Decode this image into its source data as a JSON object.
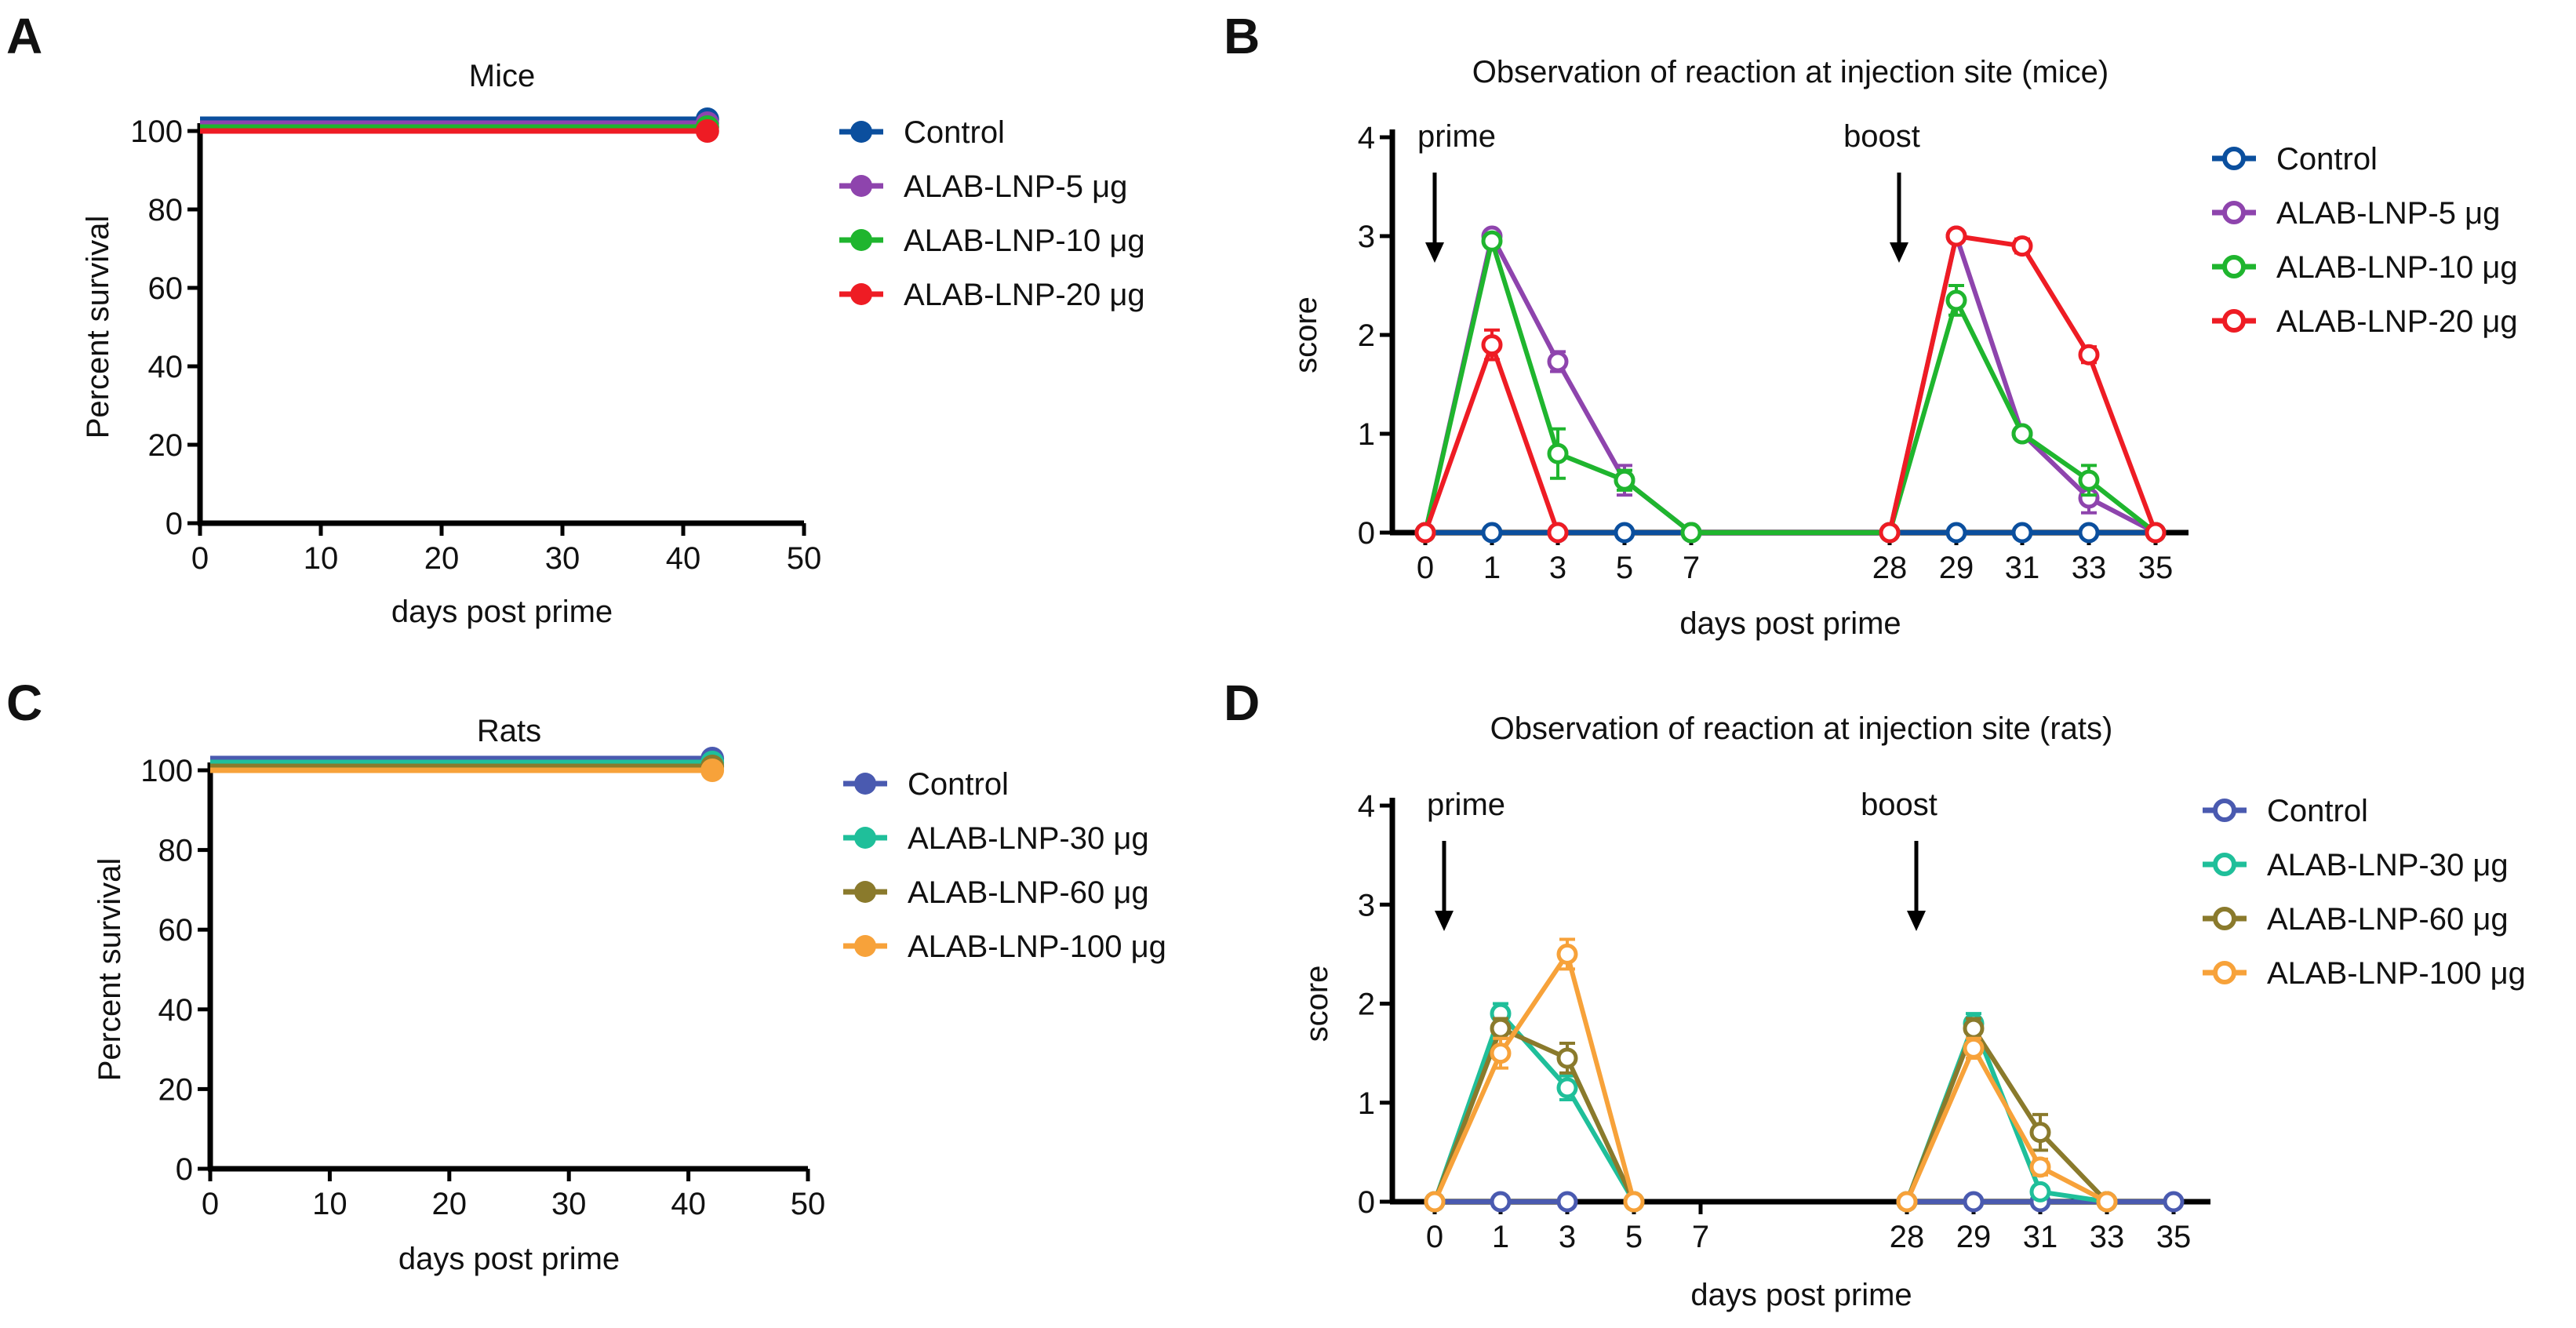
{
  "chart_data": [
    {
      "panel": "A",
      "type": "line",
      "title": "Mice",
      "xlabel": "days post prime",
      "ylabel": "Percent survival",
      "xlim": [
        0,
        50
      ],
      "ylim": [
        0,
        100
      ],
      "xticks": [
        "0",
        "10",
        "20",
        "30",
        "40",
        "50"
      ],
      "yticks": [
        "0",
        "20",
        "40",
        "60",
        "80",
        "100"
      ],
      "legend_position": "right",
      "series": [
        {
          "name": "Control",
          "color": "#0b4f9e",
          "x": [
            0,
            42
          ],
          "y": [
            100,
            100
          ]
        },
        {
          "name": "ALAB-LNP-5 μg",
          "color": "#8e44ad",
          "x": [
            0,
            42
          ],
          "y": [
            100,
            100
          ]
        },
        {
          "name": "ALAB-LNP-10 μg",
          "color": "#1fb52e",
          "x": [
            0,
            42
          ],
          "y": [
            100,
            100
          ]
        },
        {
          "name": "ALAB-LNP-20 μg",
          "color": "#ee1c24",
          "x": [
            0,
            42
          ],
          "y": [
            100,
            100
          ]
        }
      ]
    },
    {
      "panel": "B",
      "type": "line",
      "title": "Observation of reaction at injection site (mice)",
      "xlabel": "days post prime",
      "ylabel": "score",
      "categories": [
        "0",
        "1",
        "3",
        "5",
        "7",
        "28",
        "29",
        "31",
        "33",
        "35"
      ],
      "ylim": [
        0,
        4
      ],
      "yticks": [
        "0",
        "1",
        "2",
        "3",
        "4"
      ],
      "annotations": [
        {
          "text": "prime",
          "at": "0"
        },
        {
          "text": "boost",
          "at": "28"
        }
      ],
      "legend_position": "right",
      "series": [
        {
          "name": "Control",
          "color": "#0b4f9e",
          "values": [
            0,
            0,
            0,
            0,
            0,
            0,
            0,
            0,
            0,
            0
          ],
          "err": [
            0,
            0,
            0,
            0,
            0,
            0,
            0,
            0,
            0,
            0
          ]
        },
        {
          "name": "ALAB-LNP-5 μg",
          "color": "#8e44ad",
          "values": [
            0,
            3,
            1.73,
            0.53,
            0,
            0,
            3,
            1,
            0.35,
            0
          ],
          "err": [
            0,
            0,
            0.1,
            0.15,
            0,
            0,
            0,
            0,
            0.15,
            0
          ]
        },
        {
          "name": "ALAB-LNP-10 μg",
          "color": "#1fb52e",
          "values": [
            0,
            2.95,
            0.8,
            0.53,
            0,
            0,
            2.35,
            1,
            0.53,
            0
          ],
          "err": [
            0,
            0,
            0.25,
            0.1,
            0,
            0,
            0.15,
            0,
            0.15,
            0
          ]
        },
        {
          "name": "ALAB-LNP-20 μg",
          "color": "#ee1c24",
          "values": [
            0,
            1.9,
            0,
            null,
            null,
            0,
            3,
            2.9,
            1.8,
            0
          ],
          "err": [
            0,
            0.15,
            0,
            0,
            0,
            0,
            0,
            0.07,
            0.08,
            0
          ]
        }
      ]
    },
    {
      "panel": "C",
      "type": "line",
      "title": "Rats",
      "xlabel": "days post prime",
      "ylabel": "Percent survival",
      "xlim": [
        0,
        50
      ],
      "ylim": [
        0,
        100
      ],
      "xticks": [
        "0",
        "10",
        "20",
        "30",
        "40",
        "50"
      ],
      "yticks": [
        "0",
        "20",
        "40",
        "60",
        "80",
        "100"
      ],
      "legend_position": "right",
      "series": [
        {
          "name": "Control",
          "color": "#4a5ab0",
          "x": [
            0,
            42
          ],
          "y": [
            100,
            100
          ]
        },
        {
          "name": "ALAB-LNP-30 μg",
          "color": "#1fbf9a",
          "x": [
            0,
            42
          ],
          "y": [
            100,
            100
          ]
        },
        {
          "name": "ALAB-LNP-60 μg",
          "color": "#8a7a2c",
          "x": [
            0,
            42
          ],
          "y": [
            100,
            100
          ]
        },
        {
          "name": "ALAB-LNP-100 μg",
          "color": "#f7a23a",
          "x": [
            0,
            42
          ],
          "y": [
            100,
            100
          ]
        }
      ]
    },
    {
      "panel": "D",
      "type": "line",
      "title": "Observation of reaction at injection site (rats)",
      "xlabel": "days post prime",
      "ylabel": "score",
      "categories": [
        "0",
        "1",
        "3",
        "5",
        "7",
        "28",
        "29",
        "31",
        "33",
        "35"
      ],
      "ylim": [
        0,
        4
      ],
      "yticks": [
        "0",
        "1",
        "2",
        "3",
        "4"
      ],
      "annotations": [
        {
          "text": "prime",
          "at": "0"
        },
        {
          "text": "boost",
          "at": "28"
        }
      ],
      "legend_position": "right",
      "series": [
        {
          "name": "Control",
          "color": "#4a5ab0",
          "values": [
            0,
            0,
            0,
            null,
            null,
            0,
            0,
            0,
            0,
            0
          ],
          "err": [
            0,
            0,
            0,
            0,
            0,
            0,
            0,
            0,
            0,
            0
          ]
        },
        {
          "name": "ALAB-LNP-30 μg",
          "color": "#1fbf9a",
          "values": [
            0,
            1.9,
            1.15,
            0,
            null,
            0,
            1.8,
            0.1,
            0,
            null
          ],
          "err": [
            0,
            0.1,
            0.12,
            0,
            0,
            0,
            0.1,
            0.05,
            0,
            0
          ]
        },
        {
          "name": "ALAB-LNP-60 μg",
          "color": "#8a7a2c",
          "values": [
            0,
            1.75,
            1.45,
            0,
            null,
            0,
            1.75,
            0.7,
            0,
            null
          ],
          "err": [
            0,
            0.1,
            0.15,
            0,
            0,
            0,
            0.1,
            0.18,
            0,
            0
          ]
        },
        {
          "name": "ALAB-LNP-100 μg",
          "color": "#f7a23a",
          "values": [
            0,
            1.5,
            2.5,
            0,
            null,
            0,
            1.55,
            0.35,
            0,
            null
          ],
          "err": [
            0,
            0.15,
            0.15,
            0,
            0,
            0,
            0.1,
            0.08,
            0,
            0
          ]
        }
      ]
    }
  ]
}
